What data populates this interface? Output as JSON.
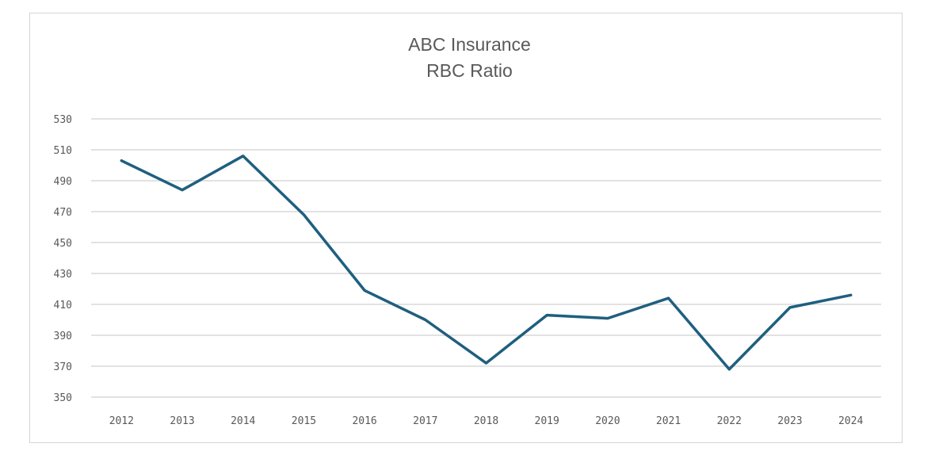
{
  "chart_data": {
    "type": "line",
    "title": "ABC Insurance",
    "subtitle": "RBC Ratio",
    "xlabel": "",
    "ylabel": "",
    "categories": [
      "2012",
      "2013",
      "2014",
      "2015",
      "2016",
      "2017",
      "2018",
      "2019",
      "2020",
      "2021",
      "2022",
      "2023",
      "2024"
    ],
    "series": [
      {
        "name": "RBC Ratio",
        "color": "#1f5f7f",
        "values": [
          503,
          484,
          506,
          468,
          419,
          400,
          372,
          403,
          401,
          414,
          368,
          408,
          416
        ]
      }
    ],
    "ylim": [
      350,
      530
    ],
    "yticks": [
      350,
      370,
      390,
      410,
      430,
      450,
      470,
      490,
      510,
      530
    ],
    "grid": true,
    "legend": "none"
  },
  "header": {
    "title_line1": "ABC Insurance",
    "title_line2": "RBC Ratio"
  }
}
